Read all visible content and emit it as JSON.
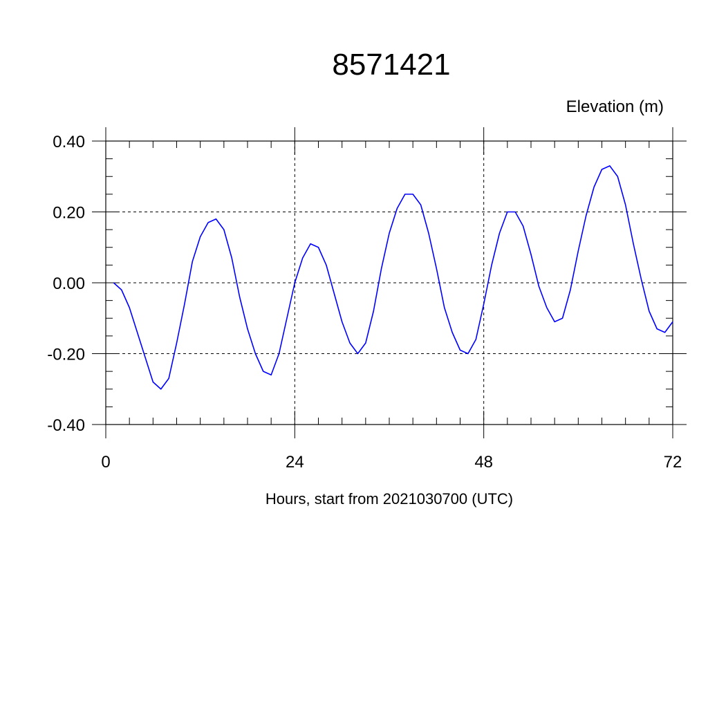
{
  "chart_data": {
    "type": "line",
    "title": "8571421",
    "ylabel": "Elevation (m)",
    "xlabel": "Hours, start from 2021030700 (UTC)",
    "xlim": [
      0,
      72
    ],
    "ylim": [
      -0.4,
      0.4
    ],
    "x_ticks": [
      0,
      24,
      48,
      72
    ],
    "x_tick_labels": [
      "0",
      "24",
      "48",
      "72"
    ],
    "y_ticks": [
      -0.4,
      -0.2,
      0.0,
      0.2,
      0.4
    ],
    "y_tick_labels": [
      "-0.40",
      "-0.20",
      "0.00",
      "0.20",
      "0.40"
    ],
    "grid": true,
    "series": [
      {
        "color": "#0000ff",
        "x": [
          1,
          2,
          3,
          4,
          5,
          6,
          7,
          8,
          9,
          10,
          11,
          12,
          13,
          14,
          15,
          16,
          17,
          18,
          19,
          20,
          21,
          22,
          23,
          24,
          25,
          26,
          27,
          28,
          29,
          30,
          31,
          32,
          33,
          34,
          35,
          36,
          37,
          38,
          39,
          40,
          41,
          42,
          43,
          44,
          45,
          46,
          47,
          48,
          49,
          50,
          51,
          52,
          53,
          54,
          55,
          56,
          57,
          58,
          59,
          60,
          61,
          62,
          63,
          64,
          65,
          66,
          67,
          68,
          69,
          70,
          71,
          72
        ],
        "y": [
          0.0,
          -0.02,
          -0.07,
          -0.14,
          -0.21,
          -0.28,
          -0.3,
          -0.27,
          -0.17,
          -0.06,
          0.06,
          0.13,
          0.17,
          0.18,
          0.15,
          0.07,
          -0.04,
          -0.13,
          -0.2,
          -0.25,
          -0.26,
          -0.2,
          -0.1,
          0.0,
          0.07,
          0.11,
          0.1,
          0.05,
          -0.03,
          -0.11,
          -0.17,
          -0.2,
          -0.17,
          -0.08,
          0.04,
          0.14,
          0.21,
          0.25,
          0.25,
          0.22,
          0.14,
          0.04,
          -0.07,
          -0.14,
          -0.19,
          -0.2,
          -0.16,
          -0.06,
          0.05,
          0.14,
          0.2,
          0.2,
          0.16,
          0.08,
          -0.01,
          -0.07,
          -0.11,
          -0.1,
          -0.02,
          0.09,
          0.19,
          0.27,
          0.32,
          0.33,
          0.3,
          0.22,
          0.11,
          0.01,
          -0.08,
          -0.13,
          -0.14,
          -0.11
        ]
      }
    ]
  }
}
